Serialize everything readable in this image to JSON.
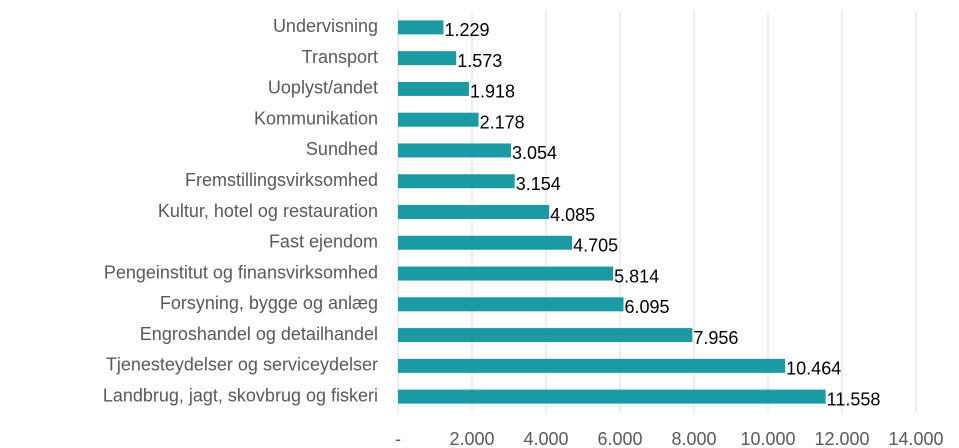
{
  "chart_data": {
    "type": "bar",
    "orientation": "horizontal",
    "categories": [
      "Undervisning",
      "Transport",
      "Uoplyst/andet",
      "Kommunikation",
      "Sundhed",
      "Fremstillingsvirksomhed",
      "Kultur, hotel og restauration",
      "Fast ejendom",
      "Pengeinstitut og finansvirksomhed",
      "Forsyning, bygge og anlæg",
      "Engroshandel og detailhandel",
      "Tjenesteydelser og serviceydelser",
      "Landbrug, jagt, skovbrug og fiskeri"
    ],
    "values": [
      1229,
      1573,
      1918,
      2178,
      3054,
      3154,
      4085,
      4705,
      5814,
      6095,
      7956,
      10464,
      11558
    ],
    "value_labels": [
      "1.229",
      "1.573",
      "1.918",
      "2.178",
      "3.054",
      "3.154",
      "4.085",
      "4.705",
      "5.814",
      "6.095",
      "7.956",
      "10.464",
      "11.558"
    ],
    "color": "#1b9aa3",
    "xlim": [
      0,
      14000
    ],
    "xticks": [
      {
        "value": 0,
        "label": "-"
      },
      {
        "value": 2000,
        "label": "2.000"
      },
      {
        "value": 4000,
        "label": "4.000"
      },
      {
        "value": 6000,
        "label": "6.000"
      },
      {
        "value": 8000,
        "label": "8.000"
      },
      {
        "value": 10000,
        "label": "10.000"
      },
      {
        "value": 12000,
        "label": "12.000"
      },
      {
        "value": 14000,
        "label": "14.000"
      }
    ],
    "grid": true
  }
}
